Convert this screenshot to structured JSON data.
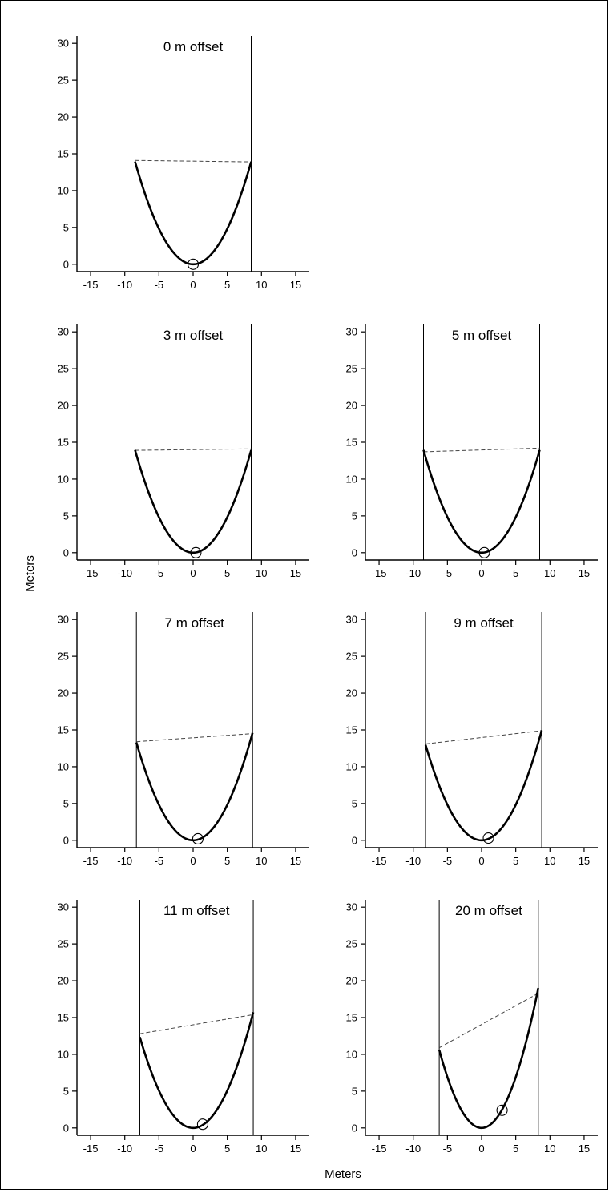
{
  "figure": {
    "xlabel": "Meters",
    "ylabel": "Meters"
  },
  "chart_data": [
    {
      "type": "line",
      "title": "0 m offset",
      "xlim": [
        -17,
        17
      ],
      "ylim": [
        -1,
        31
      ],
      "xticks": [
        -15,
        -10,
        -5,
        0,
        5,
        10,
        15
      ],
      "yticks": [
        0,
        5,
        10,
        15,
        20,
        25,
        30
      ],
      "grid": false,
      "walls_x": [
        -8.5,
        8.5
      ],
      "curve": {
        "x0": 0,
        "curvature": 0.193,
        "x_range": [
          -8.5,
          8.5
        ]
      },
      "chord": {
        "x": [
          -8.5,
          8.5
        ],
        "y": [
          14.1,
          13.9
        ]
      },
      "marker": {
        "x": 0,
        "y": 0
      }
    },
    {
      "type": "line",
      "title": "3 m offset",
      "xlim": [
        -17,
        17
      ],
      "ylim": [
        -1,
        31
      ],
      "xticks": [
        -15,
        -10,
        -5,
        0,
        5,
        10,
        15
      ],
      "yticks": [
        0,
        5,
        10,
        15,
        20,
        25,
        30
      ],
      "grid": false,
      "walls_x": [
        -8.5,
        8.5
      ],
      "curve": {
        "x0": 0,
        "curvature": 0.193,
        "x_range": [
          -8.5,
          8.5
        ]
      },
      "chord": {
        "x": [
          -8.5,
          8.5
        ],
        "y": [
          13.9,
          14.1
        ]
      },
      "marker": {
        "x": 0.4,
        "y": 0
      }
    },
    {
      "type": "line",
      "title": "5 m offset",
      "xlim": [
        -17,
        17
      ],
      "ylim": [
        -1,
        31
      ],
      "xticks": [
        -15,
        -10,
        -5,
        0,
        5,
        10,
        15
      ],
      "yticks": [
        0,
        5,
        10,
        15,
        20,
        25,
        30
      ],
      "grid": false,
      "walls_x": [
        -8.5,
        8.5
      ],
      "curve": {
        "x0": 0,
        "curvature": 0.193,
        "x_range": [
          -8.5,
          8.5
        ]
      },
      "chord": {
        "x": [
          -8.5,
          8.5
        ],
        "y": [
          13.7,
          14.2
        ]
      },
      "marker": {
        "x": 0.4,
        "y": 0
      }
    },
    {
      "type": "line",
      "title": "7 m offset",
      "xlim": [
        -17,
        17
      ],
      "ylim": [
        -1,
        31
      ],
      "xticks": [
        -15,
        -10,
        -5,
        0,
        5,
        10,
        15
      ],
      "yticks": [
        0,
        5,
        10,
        15,
        20,
        25,
        30
      ],
      "grid": false,
      "walls_x": [
        -8.3,
        8.7
      ],
      "curve": {
        "x0": 0,
        "curvature": 0.193,
        "x_range": [
          -8.3,
          8.7
        ]
      },
      "chord": {
        "x": [
          -8.3,
          8.7
        ],
        "y": [
          13.4,
          14.5
        ]
      },
      "marker": {
        "x": 0.7,
        "y": 0.2
      }
    },
    {
      "type": "line",
      "title": "9 m offset",
      "xlim": [
        -17,
        17
      ],
      "ylim": [
        -1,
        31
      ],
      "xticks": [
        -15,
        -10,
        -5,
        0,
        5,
        10,
        15
      ],
      "yticks": [
        0,
        5,
        10,
        15,
        20,
        25,
        30
      ],
      "grid": false,
      "walls_x": [
        -8.2,
        8.8
      ],
      "curve": {
        "x0": 0,
        "curvature": 0.193,
        "x_range": [
          -8.2,
          8.8
        ]
      },
      "chord": {
        "x": [
          -8.2,
          8.8
        ],
        "y": [
          13.1,
          14.9
        ]
      },
      "marker": {
        "x": 1.0,
        "y": 0.3
      }
    },
    {
      "type": "line",
      "title": "11 m offset",
      "xlim": [
        -17,
        17
      ],
      "ylim": [
        -1,
        31
      ],
      "xticks": [
        -15,
        -10,
        -5,
        0,
        5,
        10,
        15
      ],
      "yticks": [
        0,
        5,
        10,
        15,
        20,
        25,
        30
      ],
      "grid": false,
      "walls_x": [
        -7.8,
        8.8
      ],
      "curve": {
        "x0": 0,
        "curvature": 0.203,
        "x_range": [
          -7.8,
          8.8
        ]
      },
      "chord": {
        "x": [
          -7.8,
          8.8
        ],
        "y": [
          12.8,
          15.4
        ]
      },
      "marker": {
        "x": 1.4,
        "y": 0.5
      }
    },
    {
      "type": "line",
      "title": "20 m offset",
      "xlim": [
        -17,
        17
      ],
      "ylim": [
        -1,
        31
      ],
      "xticks": [
        -15,
        -10,
        -5,
        0,
        5,
        10,
        15
      ],
      "yticks": [
        0,
        5,
        10,
        15,
        20,
        25,
        30
      ],
      "grid": false,
      "walls_x": [
        -6.2,
        8.3
      ],
      "curve": {
        "x0": 0,
        "curvature": 0.276,
        "x_range": [
          -6.2,
          8.3
        ]
      },
      "chord": {
        "x": [
          -6.2,
          8.3
        ],
        "y": [
          10.9,
          18.3
        ]
      },
      "marker": {
        "x": 3.0,
        "y": 2.4
      }
    }
  ]
}
